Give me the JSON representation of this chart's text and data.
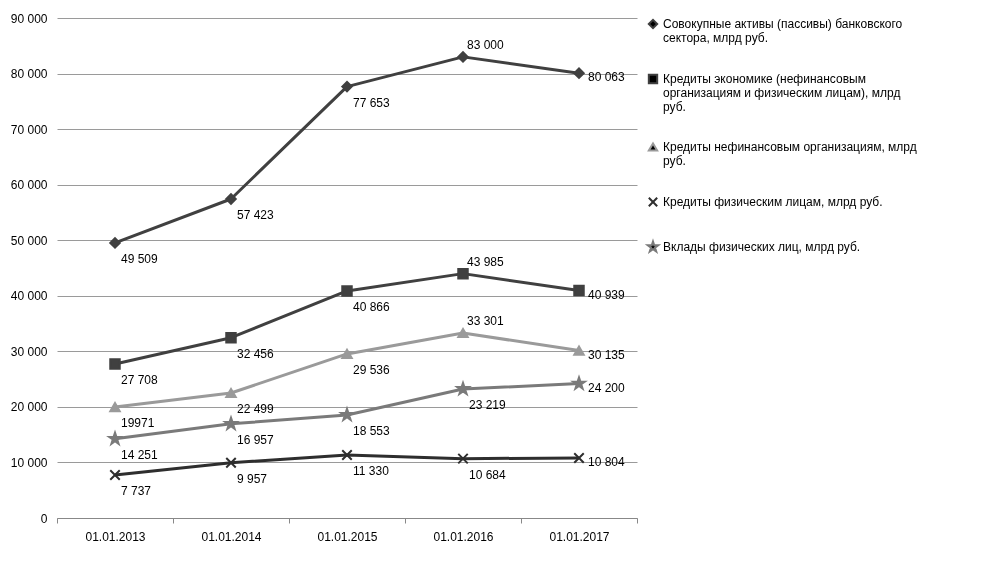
{
  "chart_data": {
    "type": "line",
    "categories": [
      "01.01.2013",
      "01.01.2014",
      "01.01.2015",
      "01.01.2016",
      "01.01.2017"
    ],
    "ylim": [
      0,
      90000
    ],
    "yticks": [
      0,
      {
        "value": 10000,
        "label": "10 000"
      },
      {
        "value": 20000,
        "label": "20 000"
      },
      {
        "value": 30000,
        "label": "30 000"
      },
      {
        "value": 40000,
        "label": "40 000"
      },
      {
        "value": 50000,
        "label": "50 000"
      },
      {
        "value": 60000,
        "label": "60 000"
      },
      {
        "value": 70000,
        "label": "70 000"
      },
      {
        "value": 80000,
        "label": "80 000"
      },
      {
        "value": 90000,
        "label": "90 000"
      }
    ],
    "grid": "y",
    "legend": "right",
    "series": [
      {
        "name": "Совокупные активы  (пассивы) банковского сектора, млрд руб.",
        "color": "#404040",
        "marker": "diamond",
        "values": [
          49509,
          57423,
          77653,
          83000,
          80063
        ],
        "value_labels": [
          "49 509",
          "57 423",
          "77 653",
          "83 000",
          "80 063"
        ]
      },
      {
        "name": "Кредиты экономике (нефинансовым организациям и физическим лицам), млрд руб.",
        "color": "#404040",
        "marker": "square",
        "values": [
          27708,
          32456,
          40866,
          43985,
          40939
        ],
        "value_labels": [
          "27 708",
          "32 456",
          "40 866",
          "43 985",
          "40 939"
        ]
      },
      {
        "name": "Кредиты нефинансовым организациям, млрд руб.",
        "color": "#9a9a9a",
        "marker": "triangle",
        "values": [
          19971,
          22499,
          29536,
          33301,
          30135
        ],
        "value_labels": [
          "19971",
          "22 499",
          "29 536",
          "33 301",
          "30 135"
        ]
      },
      {
        "name": "Кредиты физическим лицам, млрд руб.",
        "color": "#2e2e2e",
        "marker": "cross",
        "values": [
          7737,
          9957,
          11330,
          10684,
          10804
        ],
        "value_labels": [
          "7 737",
          "9 957",
          "11 330",
          "10 684",
          "10 804"
        ]
      },
      {
        "name": "Вклады физических лиц, млрд руб.",
        "color": "#7a7a7a",
        "marker": "star",
        "values": [
          14251,
          16957,
          18553,
          23219,
          24200
        ],
        "value_labels": [
          "14 251",
          "16 957",
          "18 553",
          "23 219",
          "24 200"
        ]
      }
    ]
  }
}
